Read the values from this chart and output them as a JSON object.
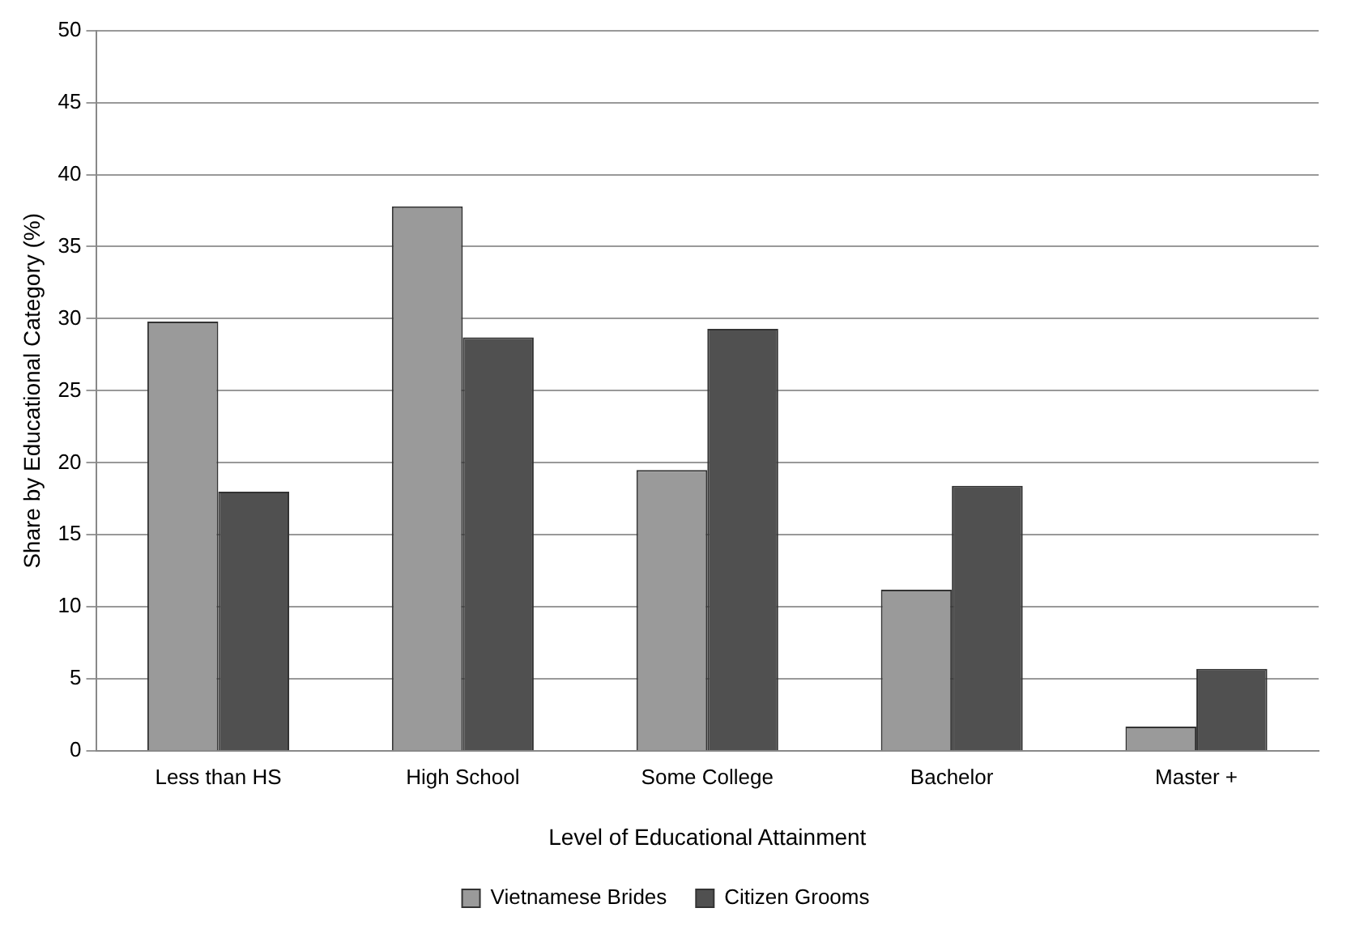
{
  "chart_data": {
    "type": "bar",
    "xlabel": "Level of Educational Attainment",
    "ylabel": "Share by Educational Category (%)",
    "categories": [
      "Less than HS",
      "High School",
      "Some College",
      "Bachelor",
      "Master +"
    ],
    "series": [
      {
        "name": "Vietnamese Brides",
        "color": "#9a9a9a",
        "values": [
          29.8,
          37.8,
          19.5,
          11.2,
          1.7
        ]
      },
      {
        "name": "Citizen Grooms",
        "color": "#505050",
        "values": [
          18.0,
          28.7,
          29.3,
          18.4,
          5.7
        ]
      }
    ],
    "ylim": [
      0,
      50
    ],
    "yticks": [
      0,
      5,
      10,
      15,
      20,
      25,
      30,
      35,
      40,
      45,
      50
    ],
    "grid": "y",
    "legend": "bottom"
  }
}
